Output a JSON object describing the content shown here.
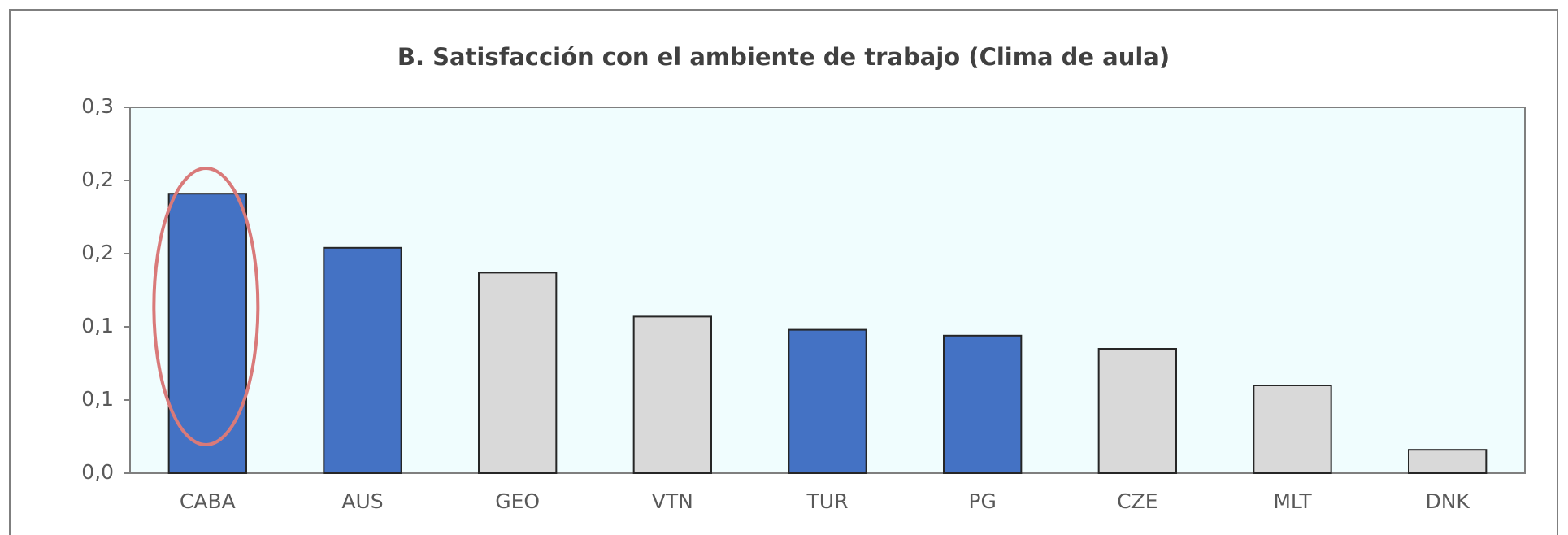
{
  "chart_data": {
    "type": "bar",
    "title": "B. Satisfacción con el ambiente de trabajo  (Clima de aula)",
    "categories": [
      "CABA",
      "AUS",
      "GEO",
      "VTN",
      "TUR",
      "PG",
      "CZE",
      "MLT",
      "DNK"
    ],
    "values": [
      0.191,
      0.154,
      0.137,
      0.107,
      0.098,
      0.094,
      0.085,
      0.06,
      0.016
    ],
    "colors": [
      "#4472c4",
      "#4472c4",
      "#d9d9d9",
      "#d9d9d9",
      "#4472c4",
      "#4472c4",
      "#d9d9d9",
      "#d9d9d9",
      "#d9d9d9"
    ],
    "ylim": [
      0,
      0.25
    ],
    "yticks": [
      {
        "value": 0,
        "label": "0,0"
      },
      {
        "value": 0.05,
        "label": "0,1"
      },
      {
        "value": 0.1,
        "label": "0,1"
      },
      {
        "value": 0.15,
        "label": "0,2"
      },
      {
        "value": 0.2,
        "label": "0,2"
      },
      {
        "value": 0.25,
        "label": "0,3"
      }
    ],
    "grid": false
  }
}
